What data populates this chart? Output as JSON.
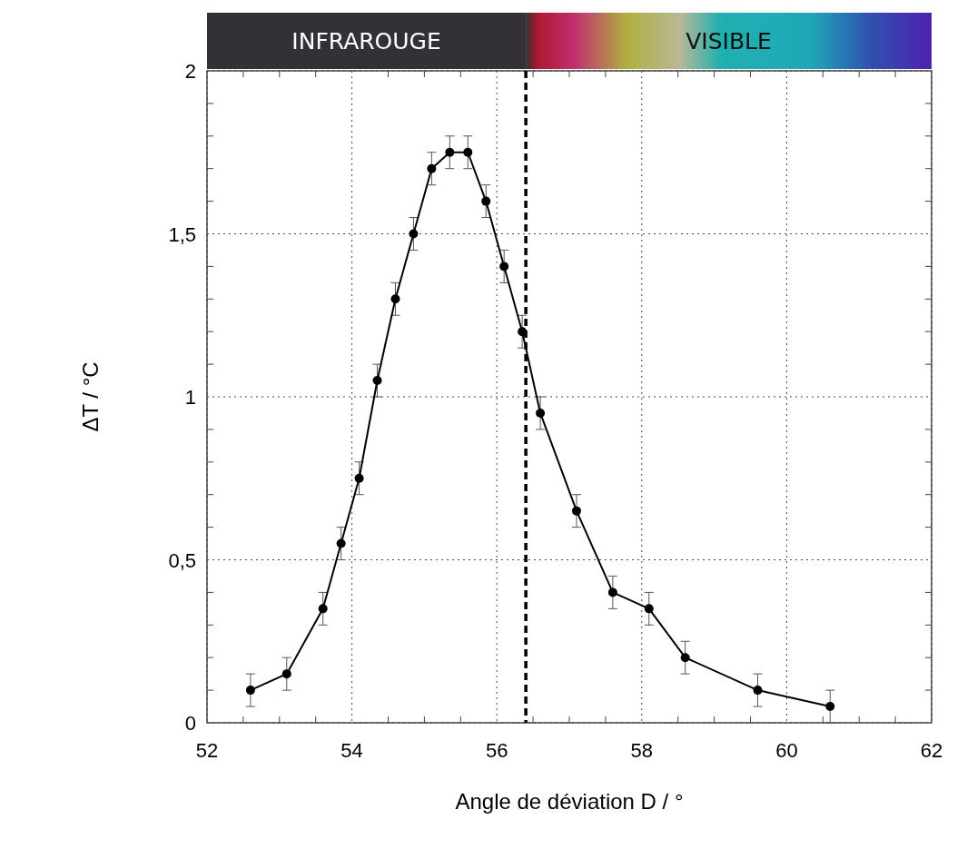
{
  "chart_data": {
    "type": "line",
    "xlabel": "Angle de déviation D / °",
    "ylabel": "ΔT / °C",
    "x": [
      52.6,
      53.1,
      53.6,
      53.85,
      54.1,
      54.35,
      54.6,
      54.85,
      55.1,
      55.35,
      55.6,
      55.85,
      56.1,
      56.35,
      56.6,
      57.1,
      57.6,
      58.1,
      58.6,
      59.6,
      60.6
    ],
    "series": [
      {
        "color": "#000000",
        "values": [
          0.1,
          0.15,
          0.35,
          0.55,
          0.75,
          1.05,
          1.3,
          1.5,
          1.7,
          1.75,
          1.75,
          1.6,
          1.4,
          1.2,
          0.95,
          0.65,
          0.4,
          0.35,
          0.2,
          0.1,
          0.05
        ],
        "errors": [
          0.05,
          0.05,
          0.05,
          0.05,
          0.05,
          0.05,
          0.05,
          0.05,
          0.05,
          0.05,
          0.05,
          0.05,
          0.05,
          0.05,
          0.05,
          0.05,
          0.05,
          0.05,
          0.05,
          0.05,
          0.05
        ]
      }
    ],
    "xlim": [
      52,
      62
    ],
    "xticks": [
      52,
      54,
      56,
      58,
      60,
      62
    ],
    "ylim": [
      0,
      2
    ],
    "yticks": [
      0,
      {
        "value": 0.5,
        "label": "0,5"
      },
      1,
      {
        "value": 1.5,
        "label": "1,5"
      },
      2
    ],
    "grid": true,
    "marker": "circle",
    "line_style": "solid",
    "ref_lines": [
      {
        "axis": "x",
        "value": 56.4,
        "line_style": "dashed",
        "color": "#000000"
      }
    ],
    "annotations": [
      "INFRAROUGE",
      "VISIBLE"
    ]
  }
}
